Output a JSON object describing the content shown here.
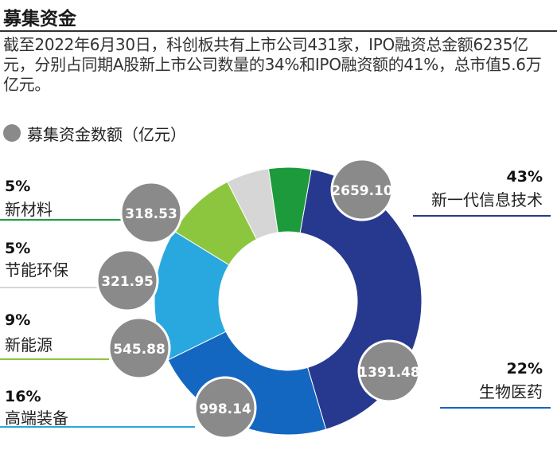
{
  "header": {
    "title": "募集资金",
    "intro": "截至2022年6月30日，科创板共有上市公司431家，IPO融资总金额6235亿元，分别占同期A股新上市公司数量的34%和IPO融资额的41%，总市值5.6万亿元。"
  },
  "chart_data": {
    "type": "pie",
    "donut": true,
    "legend_label": "募集资金数额（亿元）",
    "slices": [
      {
        "name": "新一代信息技术",
        "value": 2659.1,
        "value_label": "2659.10",
        "pct_label": "43%",
        "color": "#27398f"
      },
      {
        "name": "生物医药",
        "value": 1391.48,
        "value_label": "1391.48",
        "pct_label": "22%",
        "color": "#1467c0"
      },
      {
        "name": "高端装备",
        "value": 998.14,
        "value_label": "998.14",
        "pct_label": "16%",
        "color": "#28a8de"
      },
      {
        "name": "新能源",
        "value": 545.88,
        "value_label": "545.88",
        "pct_label": "9%",
        "color": "#8cc63f"
      },
      {
        "name": "节能环保",
        "value": 321.95,
        "value_label": "321.95",
        "pct_label": "5%",
        "color": "#d6d6d6"
      },
      {
        "name": "新材料",
        "value": 318.53,
        "value_label": "318.53",
        "pct_label": "5%",
        "color": "#1d9a3b"
      }
    ],
    "bubble_color": "#8a8a8a"
  }
}
